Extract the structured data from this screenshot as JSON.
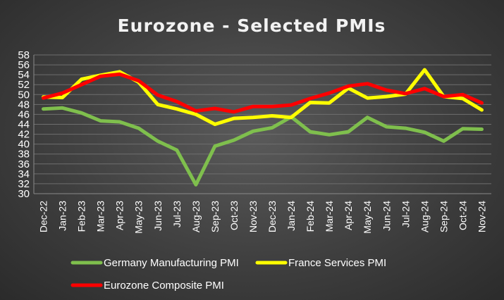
{
  "chart_data": {
    "type": "line",
    "title": "Eurozone - Selected PMIs",
    "categories": [
      "Dec-22",
      "Jan-23",
      "Feb-23",
      "Mar-23",
      "Apr-23",
      "May-23",
      "Jun-23",
      "Jul-23",
      "Aug-23",
      "Sep-23",
      "Oct-23",
      "Nov-23",
      "Dec-23",
      "Jan-24",
      "Feb-24",
      "Mar-24",
      "Apr-24",
      "May-24",
      "Jun-24",
      "Jul-24",
      "Aug-24",
      "Sep-24",
      "Oct-24",
      "Nov-24"
    ],
    "ylim": [
      30,
      58
    ],
    "yticks": [
      30,
      32,
      34,
      36,
      38,
      40,
      42,
      44,
      46,
      48,
      50,
      52,
      54,
      56,
      58
    ],
    "grid": true,
    "legend_position": "bottom",
    "series": [
      {
        "name": "Germany Manufacturing PMI",
        "color": "#7fbf4d",
        "values": [
          47.1,
          47.3,
          46.3,
          44.7,
          44.5,
          43.2,
          40.6,
          38.8,
          31.8,
          39.6,
          40.8,
          42.6,
          43.3,
          45.5,
          42.5,
          41.9,
          42.5,
          45.4,
          43.5,
          43.2,
          42.4,
          40.6,
          43.1,
          43.0
        ]
      },
      {
        "name": "France Services PMI",
        "color": "#ffff00",
        "values": [
          49.5,
          49.4,
          53.1,
          53.9,
          54.6,
          52.5,
          48.0,
          47.1,
          46.0,
          44.0,
          45.2,
          45.4,
          45.7,
          45.4,
          48.4,
          48.3,
          51.3,
          49.3,
          49.6,
          50.1,
          55.0,
          49.6,
          49.2,
          46.9
        ]
      },
      {
        "name": "Eurozone Composite PMI",
        "color": "#ff0000",
        "values": [
          49.3,
          50.3,
          52.0,
          53.7,
          54.1,
          52.8,
          49.9,
          48.6,
          46.7,
          47.2,
          46.5,
          47.6,
          47.6,
          47.9,
          49.2,
          50.3,
          51.7,
          52.2,
          50.9,
          50.2,
          51.2,
          49.6,
          50.0,
          48.3
        ]
      }
    ]
  }
}
